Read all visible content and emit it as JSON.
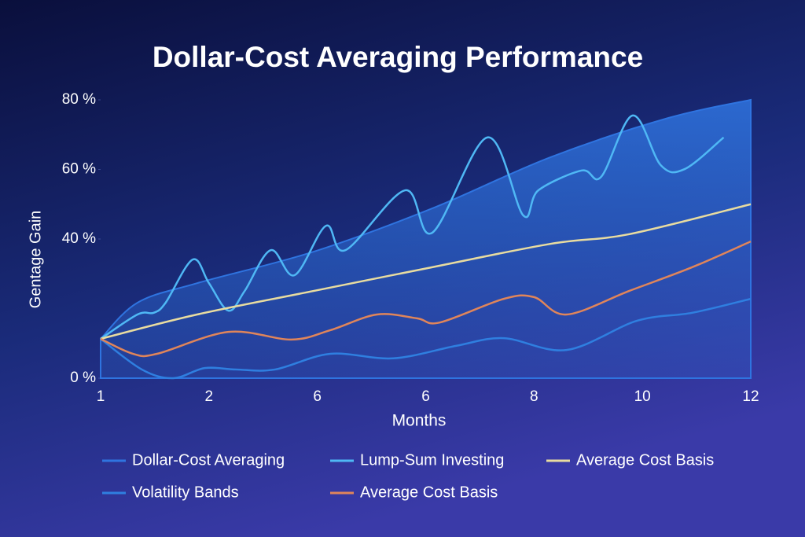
{
  "chart_data": {
    "type": "line",
    "title": "Dollar-Cost Averaging Performance",
    "x_label": "Months",
    "y_label": "Gentage Gain",
    "categories": [
      "1",
      "2",
      "6",
      "6",
      "8",
      "10",
      "12"
    ],
    "ylim": [
      0,
      80
    ],
    "yticks": [
      {
        "value": 0,
        "label": "0 %"
      },
      {
        "value": 40,
        "label": "40 %"
      },
      {
        "value": 60,
        "label": "60 %"
      },
      {
        "value": 80,
        "label": "80 %"
      }
    ],
    "legend": "bottom",
    "series": [
      {
        "name": "Dollar-Cost Averaging",
        "color": "#2f74e0",
        "style": "area",
        "x": [
          0,
          0.34,
          0.89,
          1.97,
          3.06,
          4.15,
          5.24,
          6
        ],
        "values": [
          11.3,
          21.7,
          27.3,
          36.4,
          48.8,
          63.5,
          74.8,
          80
        ]
      },
      {
        "name": "Lump-Sum Investing",
        "color": "#4fb8f5",
        "x": [
          0,
          0.34,
          0.49,
          0.6,
          0.85,
          1.0,
          1.18,
          1.33,
          1.57,
          1.79,
          2.08,
          2.26,
          2.81,
          3.06,
          3.57,
          3.9,
          4.04,
          4.44,
          4.62,
          4.91,
          5.17,
          5.39,
          5.75
        ],
        "values": [
          11.3,
          18.3,
          18.8,
          21.7,
          34.1,
          27.3,
          19.4,
          25.1,
          36.8,
          29.6,
          43.8,
          36.8,
          54.0,
          41.8,
          69.2,
          46.8,
          54.0,
          59.7,
          57.9,
          75.5,
          61.2,
          60.1,
          69.2
        ]
      },
      {
        "name": "Average Cost Basis",
        "color": "#e8dca0",
        "x": [
          0,
          0.89,
          1.97,
          3.06,
          4.15,
          4.88,
          6
        ],
        "values": [
          11.3,
          18.3,
          25.1,
          31.9,
          38.6,
          41.4,
          50.0
        ]
      },
      {
        "name": "Volatility Bands",
        "color": "#2f7fe0",
        "x": [
          0,
          0.38,
          0.67,
          0.96,
          1.25,
          1.61,
          2.12,
          2.7,
          3.28,
          3.72,
          4.3,
          4.95,
          5.46,
          6
        ],
        "values": [
          11.3,
          2.5,
          0,
          2.9,
          2.5,
          2.5,
          7.0,
          5.7,
          9.3,
          11.5,
          8.1,
          16.5,
          18.8,
          22.8
        ]
      },
      {
        "name": "Average Cost Basis",
        "color": "#e0855a",
        "x": [
          0,
          0.3,
          0.52,
          1.18,
          1.76,
          2.12,
          2.55,
          2.92,
          3.13,
          3.72,
          4.0,
          4.3,
          4.88,
          5.46,
          6
        ],
        "values": [
          11.3,
          7.0,
          7.0,
          13.3,
          11.1,
          13.8,
          18.3,
          17.2,
          16.0,
          22.8,
          23.3,
          18.3,
          25.1,
          31.9,
          39.3
        ]
      }
    ]
  }
}
